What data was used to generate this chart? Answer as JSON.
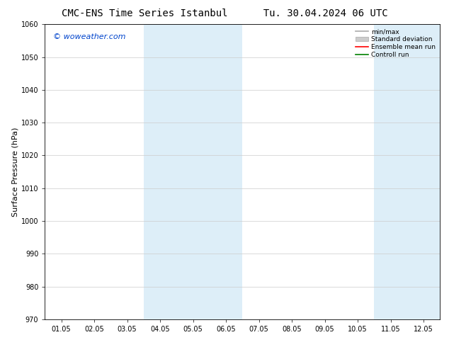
{
  "title": "CMC-ENS Time Series Istanbul",
  "title2": "Tu. 30.04.2024 06 UTC",
  "ylabel": "Surface Pressure (hPa)",
  "ylim": [
    970,
    1060
  ],
  "yticks": [
    970,
    980,
    990,
    1000,
    1010,
    1020,
    1030,
    1040,
    1050,
    1060
  ],
  "xlabels": [
    "01.05",
    "02.05",
    "03.05",
    "04.05",
    "05.05",
    "06.05",
    "07.05",
    "08.05",
    "09.05",
    "10.05",
    "11.05",
    "12.05"
  ],
  "shaded_bands": [
    {
      "xstart": 3,
      "xend": 5,
      "color": "#ddeef8"
    },
    {
      "xstart": 10,
      "xend": 12,
      "color": "#ddeef8"
    }
  ],
  "watermark": "© woweather.com",
  "watermark_color": "#0044cc",
  "legend_items": [
    {
      "label": "min/max",
      "color": "#aaaaaa",
      "lw": 1.2
    },
    {
      "label": "Standard deviation",
      "color": "#cccccc",
      "lw": 6
    },
    {
      "label": "Ensemble mean run",
      "color": "#ff0000",
      "lw": 1.2
    },
    {
      "label": "Controll run",
      "color": "#008000",
      "lw": 1.2
    }
  ],
  "background_color": "#ffffff",
  "title_fontsize": 10,
  "tick_fontsize": 7,
  "ylabel_fontsize": 8
}
